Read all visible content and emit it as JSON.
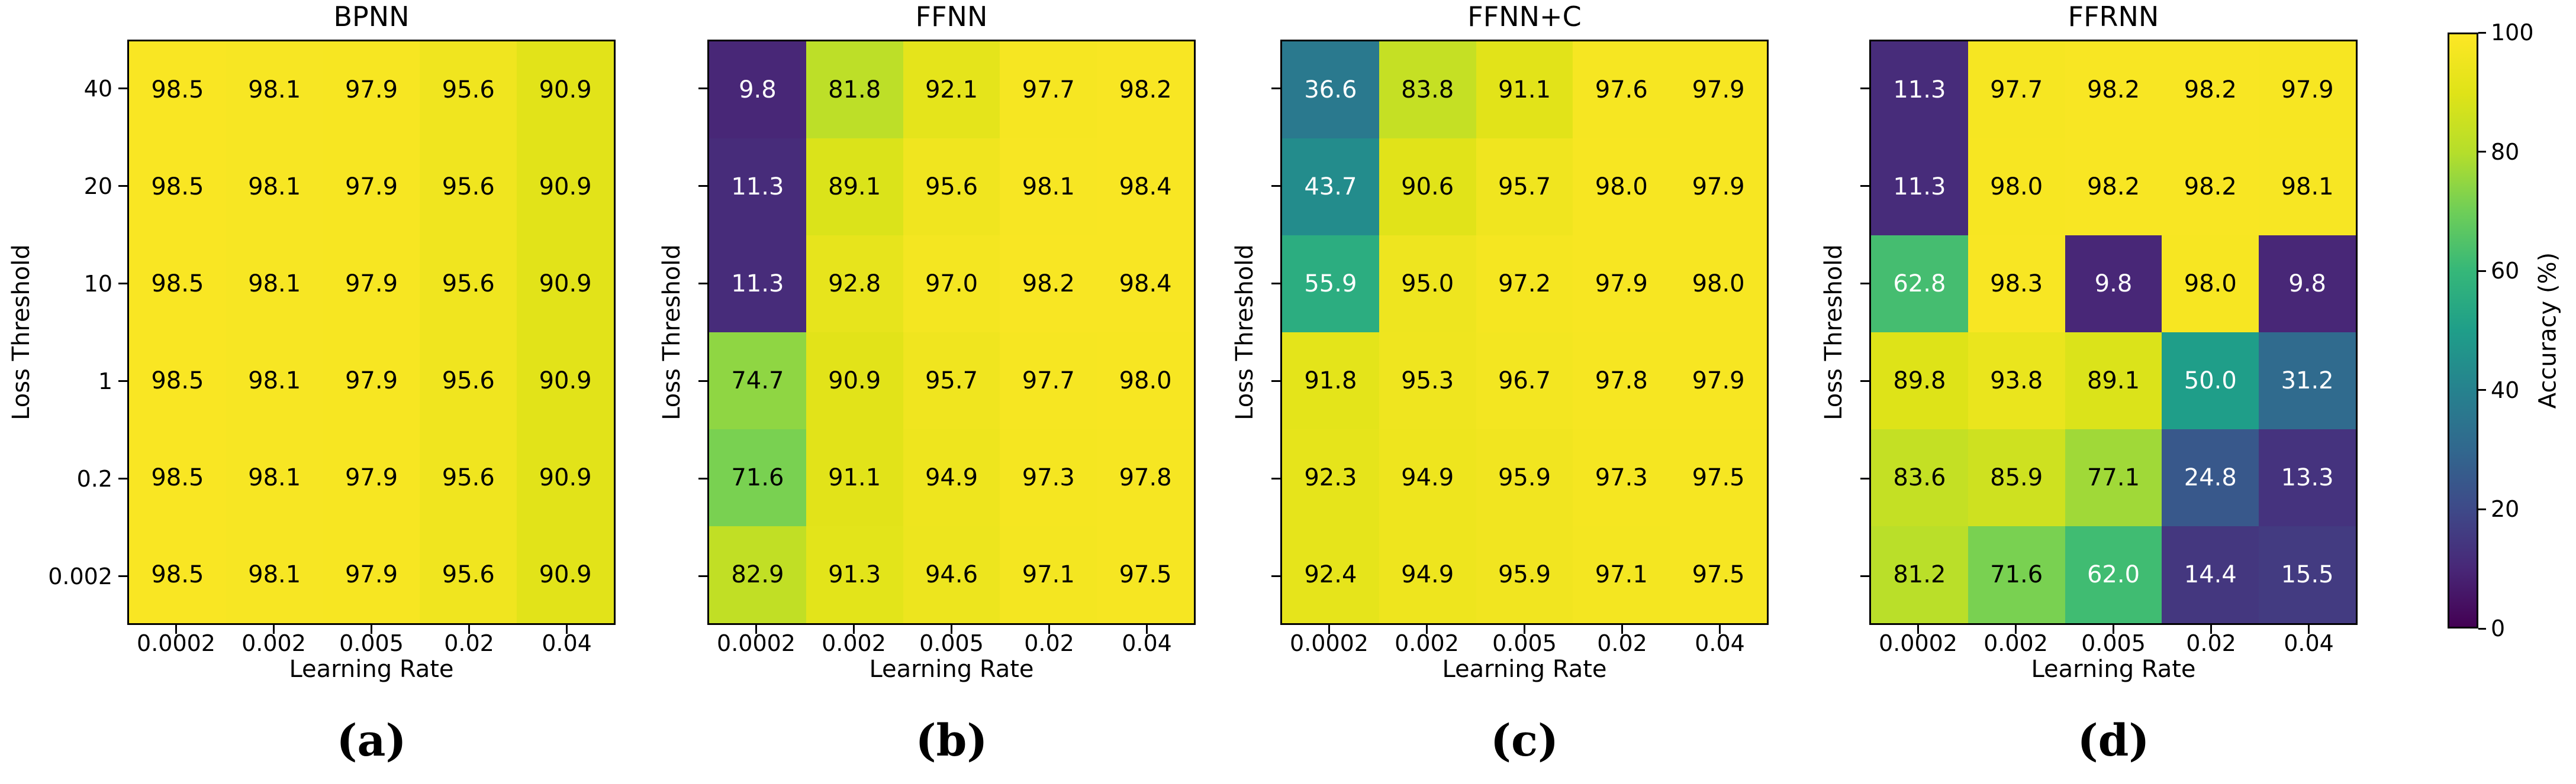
{
  "figure": {
    "xlabel": "Learning Rate",
    "ylabel": "Loss Threshold",
    "colorbar": {
      "label": "Accuracy (%)",
      "ticks": [
        0,
        20,
        40,
        60,
        80,
        100
      ],
      "min": 0,
      "max": 100
    }
  },
  "colormap": {
    "name": "viridis",
    "stops": [
      "#440154",
      "#482878",
      "#3e4a89",
      "#31688e",
      "#26828e",
      "#1f9e89",
      "#35b779",
      "#6ece58",
      "#b5de2b",
      "#dfe318",
      "#fde725"
    ],
    "text_color_low": "#ffffff",
    "text_color_high": "#000000",
    "text_threshold": 65
  },
  "chart_data": [
    {
      "type": "heatmap",
      "title": "BPNN",
      "caption": "(a)",
      "xlabel": "Learning Rate",
      "ylabel": "Loss Threshold",
      "x_categories": [
        "0.0002",
        "0.002",
        "0.005",
        "0.02",
        "0.04"
      ],
      "y_categories": [
        "40",
        "20",
        "10",
        "1",
        "0.2",
        "0.002"
      ],
      "y_tick_labels_visible": true,
      "value_range": [
        0,
        100
      ],
      "values": [
        [
          98.5,
          98.1,
          97.9,
          95.6,
          90.9
        ],
        [
          98.5,
          98.1,
          97.9,
          95.6,
          90.9
        ],
        [
          98.5,
          98.1,
          97.9,
          95.6,
          90.9
        ],
        [
          98.5,
          98.1,
          97.9,
          95.6,
          90.9
        ],
        [
          98.5,
          98.1,
          97.9,
          95.6,
          90.9
        ],
        [
          98.5,
          98.1,
          97.9,
          95.6,
          90.9
        ]
      ]
    },
    {
      "type": "heatmap",
      "title": "FFNN",
      "caption": "(b)",
      "xlabel": "Learning Rate",
      "ylabel": "Loss Threshold",
      "x_categories": [
        "0.0002",
        "0.002",
        "0.005",
        "0.02",
        "0.04"
      ],
      "y_categories": [
        "40",
        "20",
        "10",
        "1",
        "0.2",
        "0.002"
      ],
      "y_tick_labels_visible": false,
      "value_range": [
        0,
        100
      ],
      "values": [
        [
          9.8,
          81.8,
          92.1,
          97.7,
          98.2
        ],
        [
          11.3,
          89.1,
          95.6,
          98.1,
          98.4
        ],
        [
          11.3,
          92.8,
          97.0,
          98.2,
          98.4
        ],
        [
          74.7,
          90.9,
          95.7,
          97.7,
          98.0
        ],
        [
          71.6,
          91.1,
          94.9,
          97.3,
          97.8
        ],
        [
          82.9,
          91.3,
          94.6,
          97.1,
          97.5
        ]
      ]
    },
    {
      "type": "heatmap",
      "title": "FFNN+C",
      "caption": "(c)",
      "xlabel": "Learning Rate",
      "ylabel": "Loss Threshold",
      "x_categories": [
        "0.0002",
        "0.002",
        "0.005",
        "0.02",
        "0.04"
      ],
      "y_categories": [
        "40",
        "20",
        "10",
        "1",
        "0.2",
        "0.002"
      ],
      "y_tick_labels_visible": false,
      "value_range": [
        0,
        100
      ],
      "values": [
        [
          36.6,
          83.8,
          91.1,
          97.6,
          97.9
        ],
        [
          43.7,
          90.6,
          95.7,
          98.0,
          97.9
        ],
        [
          55.9,
          95.0,
          97.2,
          97.9,
          98.0
        ],
        [
          91.8,
          95.3,
          96.7,
          97.8,
          97.9
        ],
        [
          92.3,
          94.9,
          95.9,
          97.3,
          97.5
        ],
        [
          92.4,
          94.9,
          95.9,
          97.1,
          97.5
        ]
      ]
    },
    {
      "type": "heatmap",
      "title": "FFRNN",
      "caption": "(d)",
      "xlabel": "Learning Rate",
      "ylabel": "Loss Threshold",
      "x_categories": [
        "0.0002",
        "0.002",
        "0.005",
        "0.02",
        "0.04"
      ],
      "y_categories": [
        "40",
        "20",
        "10",
        "1",
        "0.2",
        "0.002"
      ],
      "y_tick_labels_visible": false,
      "value_range": [
        0,
        100
      ],
      "values": [
        [
          11.3,
          97.7,
          98.2,
          98.2,
          97.9
        ],
        [
          11.3,
          98.0,
          98.2,
          98.2,
          98.1
        ],
        [
          62.8,
          98.3,
          9.8,
          98.0,
          9.8
        ],
        [
          89.8,
          93.8,
          89.1,
          50.0,
          31.2
        ],
        [
          83.6,
          85.9,
          77.1,
          24.8,
          13.3
        ],
        [
          81.2,
          71.6,
          62.0,
          14.4,
          15.5
        ]
      ]
    }
  ]
}
